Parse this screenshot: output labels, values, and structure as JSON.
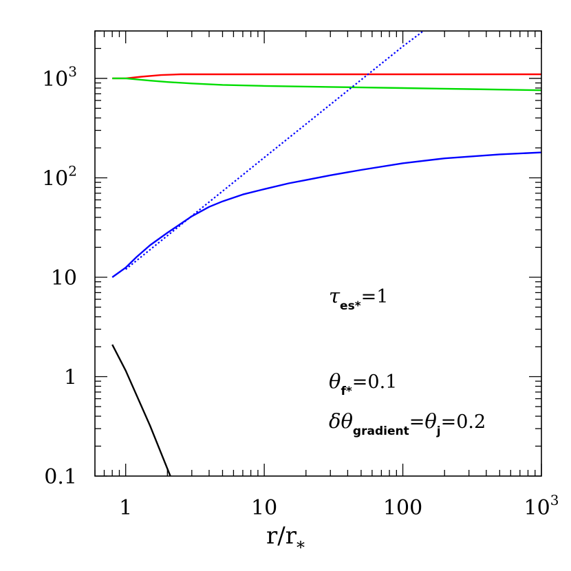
{
  "chart_data": {
    "type": "line",
    "title": "",
    "xlabel": "r/r",
    "xlabel_sub": "*",
    "ylabel": "",
    "x_scale": "log",
    "y_scale": "log",
    "xlim": [
      0.6,
      1000
    ],
    "ylim": [
      0.1,
      3000
    ],
    "grid": false,
    "x_ticks": [
      {
        "value": 1,
        "label": "1"
      },
      {
        "value": 10,
        "label": "10"
      },
      {
        "value": 100,
        "label": "100"
      },
      {
        "value": 1000,
        "label": "10",
        "sup": "3"
      }
    ],
    "y_ticks": [
      {
        "value": 0.1,
        "label": "0.1"
      },
      {
        "value": 1,
        "label": "1"
      },
      {
        "value": 10,
        "label": "10"
      },
      {
        "value": 100,
        "label": "10",
        "sup": "2"
      },
      {
        "value": 1000,
        "label": "10",
        "sup": "3"
      }
    ],
    "series": [
      {
        "color": "#ff0000",
        "style": "solid",
        "x": [
          0.8,
          1.0,
          1.3,
          1.8,
          2.5,
          3.5,
          10,
          100,
          1000
        ],
        "y": [
          1000,
          1000,
          1040,
          1080,
          1100,
          1100,
          1100,
          1100,
          1100
        ]
      },
      {
        "color": "#00dd00",
        "style": "solid",
        "x": [
          0.8,
          1.0,
          1.5,
          2,
          3,
          5,
          10,
          30,
          100,
          300,
          1000
        ],
        "y": [
          1000,
          1000,
          950,
          920,
          890,
          860,
          840,
          820,
          800,
          780,
          760
        ]
      },
      {
        "color": "#0000ff",
        "style": "solid",
        "x": [
          0.8,
          1.0,
          1.2,
          1.5,
          2,
          3,
          4,
          5,
          7,
          10,
          15,
          20,
          30,
          50,
          100,
          200,
          500,
          1000
        ],
        "y": [
          10,
          12.5,
          16,
          21,
          28,
          41,
          51,
          58,
          68,
          77,
          88,
          95,
          106,
          120,
          140,
          157,
          172,
          180
        ]
      },
      {
        "color": "#0000ff",
        "style": "dotted",
        "x": [
          1.0,
          10,
          100,
          230
        ],
        "y": [
          12,
          160,
          2100,
          5000
        ]
      },
      {
        "color": "#000000",
        "style": "solid",
        "x": [
          0.8,
          1.0,
          1.5,
          2.1
        ],
        "y": [
          2.1,
          1.15,
          0.32,
          0.1
        ]
      }
    ]
  },
  "annotations": {
    "tau": {
      "symbol": "τ",
      "sub": "es*",
      "value": "=1"
    },
    "theta_f": {
      "symbol": "θ",
      "sub": "f*",
      "value": "=0.1"
    },
    "dtheta": {
      "symbol": "δθ",
      "sub": "gradient",
      "mid": "=",
      "symbol2": "θ",
      "sub2": "j",
      "value": "=0.2"
    }
  }
}
